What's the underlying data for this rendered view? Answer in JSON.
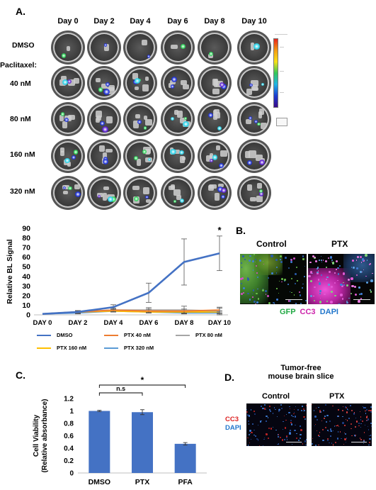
{
  "panel_a": {
    "letter": "A.",
    "days": [
      "Day 0",
      "Day 2",
      "Day 4",
      "Day 6",
      "Day 8",
      "Day 10"
    ],
    "rows": [
      "DMSO",
      "40 nM",
      "80 nM",
      "160 nM",
      "320 nM"
    ],
    "paclitaxel_label": "Paclitaxel:"
  },
  "panel_b": {
    "letter": "B.",
    "conditions": [
      "Control",
      "PTX"
    ],
    "stains": [
      {
        "label": "GFP",
        "color": "#22aa44"
      },
      {
        "label": "CC3",
        "color": "#cc22aa"
      },
      {
        "label": "DAPI",
        "color": "#2277cc"
      }
    ]
  },
  "panel_c": {
    "letter": "C."
  },
  "panel_d": {
    "letter": "D.",
    "title_line1": "Tumor-free",
    "title_line2": "mouse brain slice",
    "conditions": [
      "Control",
      "PTX"
    ],
    "stains": [
      {
        "label": "CC3",
        "color": "#dd2222"
      },
      {
        "label": "DAPI",
        "color": "#2277cc"
      }
    ]
  },
  "chart_data": [
    {
      "type": "line",
      "ylabel": "Relative BL Signal",
      "xlabel": "",
      "x": [
        "DAY 0",
        "DAY 2",
        "DAY 4",
        "DAY 6",
        "DAY 8",
        "DAY 10"
      ],
      "ylim": [
        0,
        90
      ],
      "yticks": [
        0,
        10,
        20,
        30,
        40,
        50,
        60,
        70,
        80,
        90
      ],
      "series": [
        {
          "name": "DMSO",
          "color": "#4472c4",
          "values": [
            1,
            3,
            8,
            23,
            55,
            64
          ],
          "err": [
            0,
            1.5,
            2.5,
            10,
            24,
            18
          ]
        },
        {
          "name": "PTX 40 nM",
          "color": "#ed7d31",
          "values": [
            1,
            3,
            5,
            4,
            4,
            5
          ],
          "err": [
            0,
            1,
            1.5,
            2,
            2,
            2
          ]
        },
        {
          "name": "PTX 80 nM",
          "color": "#a5a5a5",
          "values": [
            1,
            3,
            5,
            5,
            5,
            4
          ],
          "err": [
            0,
            1,
            2,
            2.5,
            4,
            4
          ]
        },
        {
          "name": "PTX 160 nM",
          "color": "#ffc000",
          "values": [
            1,
            3,
            4,
            3,
            3,
            3
          ],
          "err": [
            0,
            1,
            1,
            1,
            1.5,
            1.5
          ]
        },
        {
          "name": "PTX 320 nM",
          "color": "#5b9bd5",
          "values": [
            1,
            2,
            4,
            3,
            2,
            2
          ],
          "err": [
            0,
            1,
            1,
            1,
            1,
            1
          ]
        }
      ],
      "annotation": "*"
    },
    {
      "type": "bar",
      "ylabel": "Cell Viability (Relative absorbance)",
      "ylabel_line1": "Cell Viability",
      "ylabel_line2": "(Relative absorbance)",
      "categories": [
        "DMSO",
        "PTX",
        "PFA"
      ],
      "values": [
        1.0,
        0.98,
        0.47
      ],
      "err": [
        0.01,
        0.04,
        0.02
      ],
      "ylim": [
        0,
        1.2
      ],
      "yticks": [
        "0",
        "0.2",
        "0.4",
        "0.6",
        "0.8",
        "1",
        "1.2"
      ],
      "color": "#4472c4",
      "significance": [
        {
          "from": "DMSO",
          "to": "PTX",
          "label": "n.s"
        },
        {
          "from": "DMSO",
          "to": "PFA",
          "label": "*"
        }
      ]
    }
  ]
}
